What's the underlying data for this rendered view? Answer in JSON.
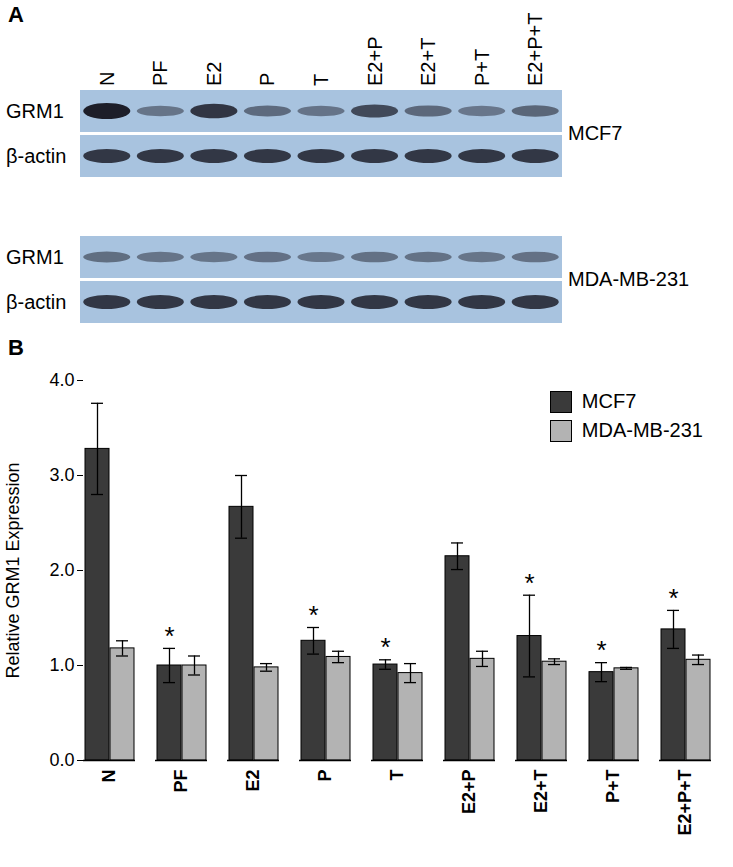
{
  "blot": {
    "panel_label": "A",
    "lanes": [
      "N",
      "PF",
      "E2",
      "P",
      "T",
      "E2+P",
      "E2+T",
      "P+T",
      "E2+P+T"
    ],
    "blots": [
      {
        "cell_line": "MCF7",
        "proteins": [
          "GRM1",
          "β-actin"
        ]
      },
      {
        "cell_line": "MDA-MB-231",
        "proteins": [
          "GRM1",
          "β-actin"
        ]
      }
    ]
  },
  "chart_data": {
    "type": "bar",
    "panel_label": "B",
    "categories": [
      "N",
      "PF",
      "E2",
      "P",
      "T",
      "E2+P",
      "E2+T",
      "P+T",
      "E2+P+T"
    ],
    "series": [
      {
        "name": "MCF7",
        "color": "#3a3a3a",
        "values": [
          3.28,
          1.0,
          2.67,
          1.26,
          1.01,
          2.15,
          1.31,
          0.93,
          1.38
        ],
        "errors": [
          0.48,
          0.18,
          0.33,
          0.14,
          0.05,
          0.14,
          0.43,
          0.1,
          0.2
        ]
      },
      {
        "name": "MDA-MB-231",
        "color": "#b3b3b3",
        "values": [
          1.18,
          1.0,
          0.98,
          1.09,
          0.92,
          1.07,
          1.04,
          0.97,
          1.06
        ],
        "errors": [
          0.08,
          0.1,
          0.04,
          0.06,
          0.1,
          0.08,
          0.03,
          0.01,
          0.05
        ]
      }
    ],
    "y_label": "Relative GRM1 Expression",
    "ylim": [
      0,
      4
    ],
    "yticks": [
      0,
      1,
      2,
      3,
      4
    ],
    "legend": "top-right",
    "annotations": [
      {
        "category": "PF",
        "series": "MCF7",
        "text": "*"
      },
      {
        "category": "P",
        "series": "MCF7",
        "text": "*"
      },
      {
        "category": "T",
        "series": "MCF7",
        "text": "*"
      },
      {
        "category": "E2+T",
        "series": "MCF7",
        "text": "*"
      },
      {
        "category": "P+T",
        "series": "MCF7",
        "text": "*"
      },
      {
        "category": "E2+P+T",
        "series": "MCF7",
        "text": "*"
      }
    ]
  }
}
